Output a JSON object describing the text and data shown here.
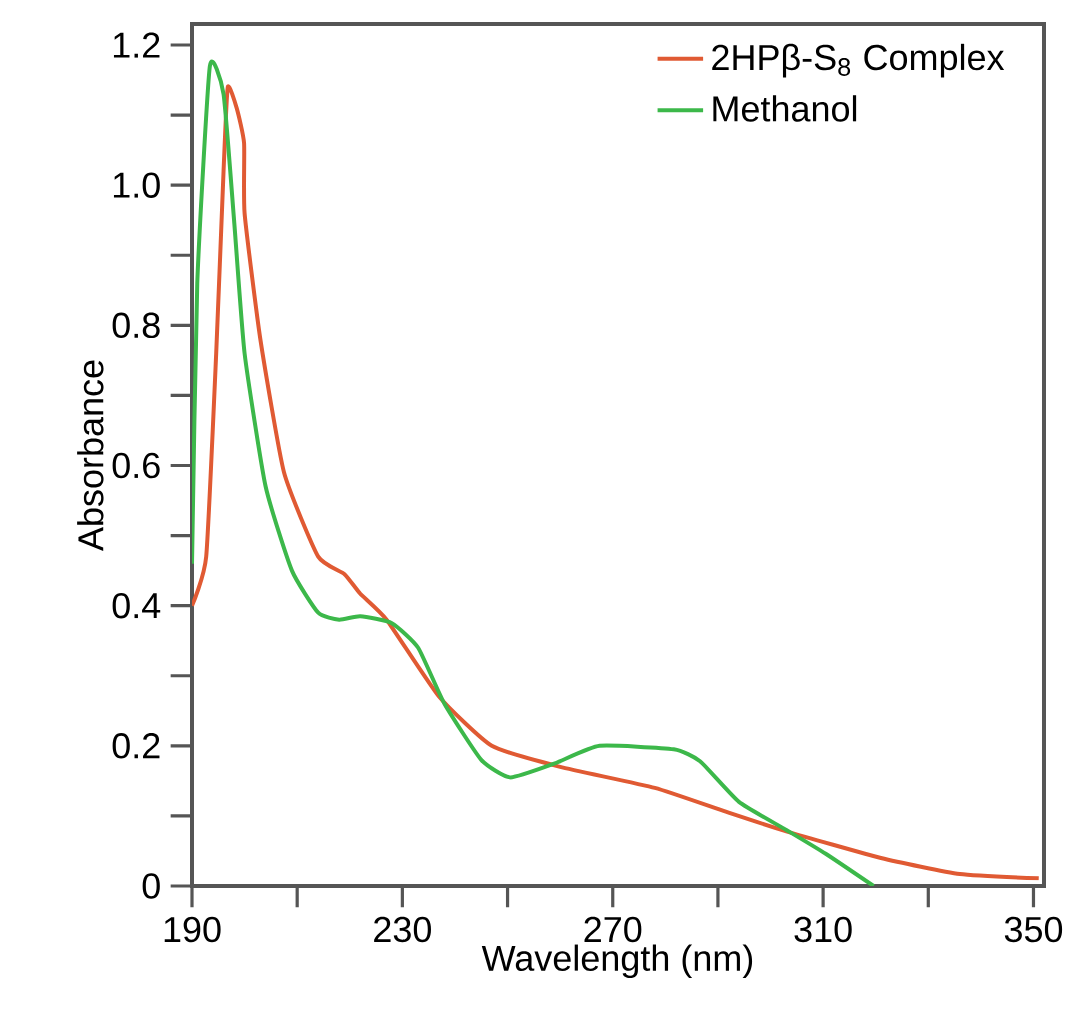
{
  "chart_data": {
    "type": "line",
    "xlabel": "Wavelength (nm)",
    "ylabel": "Absorbance",
    "xlim": [
      190,
      352
    ],
    "ylim": [
      0,
      1.23
    ],
    "xticks": [
      190,
      {
        "value": 210,
        "label": null
      },
      230,
      {
        "value": 250,
        "label": null
      },
      270,
      {
        "value": 290,
        "label": null
      },
      310,
      {
        "value": 330,
        "label": null
      },
      350
    ],
    "yticks": [
      0,
      {
        "value": 0.1,
        "label": null
      },
      0.2,
      {
        "value": 0.3,
        "label": null
      },
      0.4,
      {
        "value": 0.5,
        "label": null
      },
      0.6,
      {
        "value": 0.7,
        "label": null
      },
      0.8,
      {
        "value": 0.9,
        "label": null
      },
      {
        "value": 1,
        "label": "1.0"
      },
      {
        "value": 1.1,
        "label": null
      },
      1.2
    ],
    "legend": "top right",
    "grid": false,
    "marker": "none",
    "line_style": "solid",
    "series": [
      {
        "name": "2HPβ-S$_{8}$ Complex",
        "color": "#e05a33",
        "x": [
          190,
          192.7,
          194.6,
          196,
          196.8,
          198.5,
          199.9,
          200,
          203,
          207.5,
          214,
          219,
          222,
          227,
          237,
          247,
          260,
          278,
          291.5,
          303,
          321,
          336,
          351
        ],
        "values": [
          0.4,
          0.47,
          0.76,
          1.02,
          1.14,
          1.11,
          1.06,
          0.96,
          0.78,
          0.59,
          0.47,
          0.445,
          0.417,
          0.38,
          0.27,
          0.2,
          0.17,
          0.14,
          0.106,
          0.078,
          0.04,
          0.017,
          0.011
        ]
      },
      {
        "name": "Methanol",
        "color": "#3cb84a",
        "x": [
          190,
          191,
          193.4,
          196,
          198,
          200,
          204,
          209,
          214,
          218,
          222,
          228,
          233,
          238,
          245,
          250.5,
          259,
          267.5,
          281.6,
          286.6,
          294,
          303,
          310.5,
          319.6
        ],
        "values": [
          0.46,
          0.86,
          1.17,
          1.13,
          0.95,
          0.76,
          0.57,
          0.45,
          0.39,
          0.38,
          0.385,
          0.375,
          0.34,
          0.26,
          0.18,
          0.155,
          0.175,
          0.2,
          0.195,
          0.178,
          0.12,
          0.08,
          0.046,
          0.0
        ]
      }
    ]
  }
}
